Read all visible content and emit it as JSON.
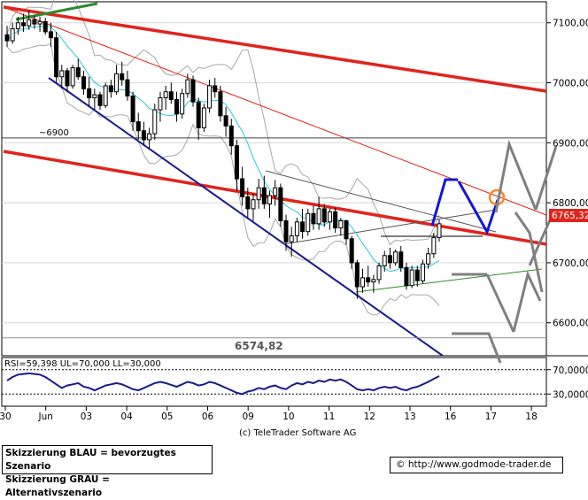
{
  "chart_data": [
    {
      "type": "candlestick",
      "y_ticks": [
        "7100,00",
        "7000,00",
        "6900,00",
        "6800,00",
        "6700,00",
        "6600,00"
      ],
      "y_tick_values": [
        7100,
        7000,
        6900,
        6800,
        6700,
        6600
      ],
      "ylim": [
        6545,
        7135
      ],
      "x_ticks": [
        "30",
        "Jun",
        "03",
        "04",
        "05",
        "06",
        "09",
        "10",
        "11",
        "12",
        "13",
        "16",
        "17",
        "18"
      ],
      "last_price_label": "6765,32",
      "last_price": 6765.32,
      "level_labels": [
        {
          "text": "~6900",
          "value": 6908
        },
        {
          "text": "6574,82",
          "value": 6574.82
        }
      ],
      "ohlc": [
        [
          7080,
          7095,
          7060,
          7070
        ],
        [
          7070,
          7100,
          7065,
          7090
        ],
        [
          7090,
          7110,
          7080,
          7100
        ],
        [
          7100,
          7115,
          7085,
          7095
        ],
        [
          7095,
          7120,
          7088,
          7105
        ],
        [
          7105,
          7112,
          7090,
          7098
        ],
        [
          7098,
          7110,
          7085,
          7102
        ],
        [
          7102,
          7108,
          7080,
          7085
        ],
        [
          7085,
          7100,
          7060,
          7075
        ],
        [
          7075,
          7085,
          7000,
          7010
        ],
        [
          7010,
          7030,
          6990,
          7020
        ],
        [
          7020,
          7025,
          6985,
          6995
        ],
        [
          6995,
          7030,
          6990,
          7025
        ],
        [
          7025,
          7040,
          7005,
          7010
        ],
        [
          7010,
          7020,
          6980,
          6990
        ],
        [
          6990,
          7010,
          6960,
          6975
        ],
        [
          6975,
          6990,
          6955,
          6980
        ],
        [
          6980,
          6985,
          6955,
          6962
        ],
        [
          6962,
          7000,
          6958,
          6995
        ],
        [
          6995,
          7005,
          6975,
          6985
        ],
        [
          6985,
          7030,
          6980,
          7015
        ],
        [
          7015,
          7035,
          6995,
          7005
        ],
        [
          7005,
          7020,
          6970,
          6978
        ],
        [
          6978,
          6985,
          6920,
          6935
        ],
        [
          6935,
          6950,
          6905,
          6920
        ],
        [
          6920,
          6935,
          6895,
          6905
        ],
        [
          6905,
          6925,
          6890,
          6915
        ],
        [
          6915,
          6965,
          6905,
          6955
        ],
        [
          6955,
          6985,
          6935,
          6975
        ],
        [
          6975,
          6995,
          6955,
          6985
        ],
        [
          6985,
          7000,
          6965,
          6972
        ],
        [
          6972,
          6985,
          6935,
          6948
        ],
        [
          6948,
          6990,
          6940,
          6982
        ],
        [
          6982,
          7015,
          6975,
          7005
        ],
        [
          7005,
          7012,
          6960,
          6968
        ],
        [
          6968,
          6975,
          6905,
          6925
        ],
        [
          6925,
          6965,
          6918,
          6958
        ],
        [
          6958,
          7005,
          6950,
          6995
        ],
        [
          6995,
          7008,
          6975,
          6985
        ],
        [
          6985,
          6995,
          6935,
          6945
        ],
        [
          6945,
          6960,
          6910,
          6928
        ],
        [
          6928,
          6940,
          6880,
          6895
        ],
        [
          6895,
          6905,
          6820,
          6840
        ],
        [
          6840,
          6860,
          6795,
          6810
        ],
        [
          6810,
          6825,
          6775,
          6790
        ],
        [
          6790,
          6815,
          6770,
          6805
        ],
        [
          6805,
          6840,
          6790,
          6825
        ],
        [
          6825,
          6845,
          6790,
          6798
        ],
        [
          6798,
          6820,
          6775,
          6812
        ],
        [
          6812,
          6838,
          6795,
          6825
        ],
        [
          6825,
          6832,
          6760,
          6770
        ],
        [
          6770,
          6780,
          6720,
          6735
        ],
        [
          6735,
          6760,
          6710,
          6745
        ],
        [
          6745,
          6775,
          6735,
          6768
        ],
        [
          6768,
          6790,
          6740,
          6752
        ],
        [
          6752,
          6790,
          6745,
          6782
        ],
        [
          6782,
          6795,
          6755,
          6765
        ],
        [
          6765,
          6810,
          6755,
          6790
        ],
        [
          6790,
          6798,
          6760,
          6768
        ],
        [
          6768,
          6790,
          6755,
          6785
        ],
        [
          6785,
          6792,
          6750,
          6758
        ],
        [
          6758,
          6775,
          6745,
          6770
        ],
        [
          6770,
          6772,
          6730,
          6740
        ],
        [
          6740,
          6745,
          6690,
          6700
        ],
        [
          6700,
          6705,
          6640,
          6660
        ],
        [
          6660,
          6690,
          6650,
          6675
        ],
        [
          6675,
          6695,
          6660,
          6668
        ],
        [
          6668,
          6680,
          6650,
          6672
        ],
        [
          6672,
          6700,
          6665,
          6695
        ],
        [
          6695,
          6720,
          6685,
          6712
        ],
        [
          6712,
          6725,
          6690,
          6700
        ],
        [
          6700,
          6722,
          6695,
          6718
        ],
        [
          6718,
          6728,
          6685,
          6692
        ],
        [
          6692,
          6700,
          6655,
          6662
        ],
        [
          6662,
          6695,
          6658,
          6688
        ],
        [
          6688,
          6695,
          6660,
          6670
        ],
        [
          6670,
          6705,
          6665,
          6698
        ],
        [
          6698,
          6725,
          6690,
          6715
        ],
        [
          6715,
          6750,
          6708,
          6742
        ],
        [
          6742,
          6772,
          6735,
          6765
        ]
      ]
    },
    {
      "type": "line",
      "label": "RSI=59,398 UL=70,000 LL=30,000",
      "y_ticks": [
        "70,0000",
        "30,0000"
      ],
      "y_tick_values": [
        70,
        30
      ],
      "ylim": [
        10,
        90
      ],
      "upper_level": 70,
      "lower_level": 30,
      "values": [
        52,
        58,
        62,
        63,
        64,
        63,
        62,
        58,
        52,
        46,
        40,
        44,
        46,
        48,
        42,
        40,
        36,
        40,
        44,
        46,
        48,
        46,
        42,
        38,
        36,
        40,
        44,
        48,
        50,
        48,
        45,
        42,
        46,
        50,
        48,
        44,
        46,
        50,
        48,
        44,
        40,
        36,
        32,
        30,
        34,
        36,
        40,
        38,
        42,
        44,
        40,
        38,
        44,
        48,
        46,
        50,
        48,
        52,
        50,
        54,
        52,
        54,
        50,
        44,
        38,
        36,
        38,
        36,
        40,
        42,
        40,
        42,
        38,
        36,
        40,
        42,
        46,
        50,
        55,
        59.4
      ]
    }
  ],
  "footer": {
    "line1": "Skizzierung BLAU = bevorzugtes Szenario",
    "line2": "Skizzierung GRAU = Alternativszenario",
    "copyright": "(c) TeleTrader Software AG",
    "url": "http://www.godmode-trader.de",
    "url_icon": "copyright-icon"
  },
  "colors": {
    "candle": "#000000",
    "red_trend": "#e0241b",
    "blue_trend": "#1a1a8c",
    "green_trend": "#2e8b2e",
    "bollinger": "#a8a8a8",
    "moving_average": "#2ec8d8",
    "rsi_line": "#1a1a8c",
    "scenario_blue": "#1414d8",
    "scenario_gray": "#808080",
    "price_tag": "#e0241b",
    "marker_circle": "#f08c28"
  }
}
